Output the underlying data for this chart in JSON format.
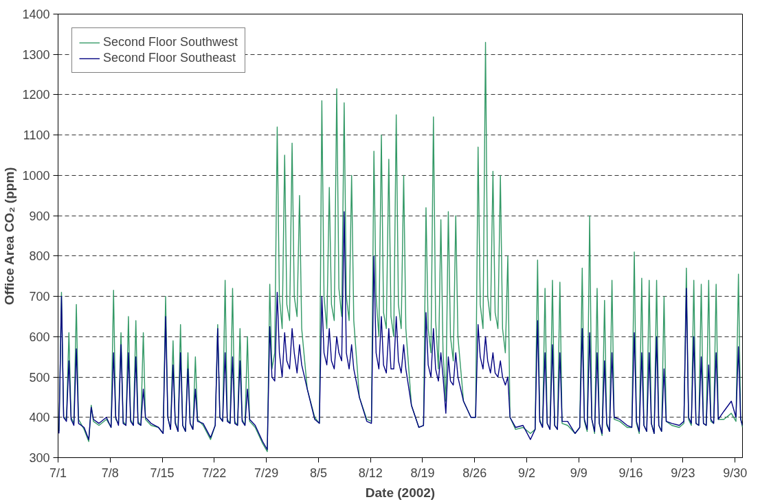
{
  "chart_data": {
    "type": "line",
    "xlabel": "Date (2002)",
    "ylabel": "Office Area CO₂ (ppm)",
    "x": [
      "2002-07-01T03:00",
      "2002-07-01T11:00",
      "2002-07-01T18:00",
      "2002-07-02T03:00",
      "2002-07-02T11:00",
      "2002-07-02T18:00",
      "2002-07-03T03:00",
      "2002-07-03T11:00",
      "2002-07-03T18:00",
      "2002-07-04T12:00",
      "2002-07-05T03:00",
      "2002-07-05T11:00",
      "2002-07-05T18:00",
      "2002-07-06T12:00",
      "2002-07-07T12:00",
      "2002-07-08T03:00",
      "2002-07-08T11:00",
      "2002-07-08T18:00",
      "2002-07-09T03:00",
      "2002-07-09T11:00",
      "2002-07-09T18:00",
      "2002-07-10T03:00",
      "2002-07-10T11:00",
      "2002-07-10T18:00",
      "2002-07-11T03:00",
      "2002-07-11T11:00",
      "2002-07-11T18:00",
      "2002-07-12T03:00",
      "2002-07-12T11:00",
      "2002-07-12T18:00",
      "2002-07-13T12:00",
      "2002-07-14T12:00",
      "2002-07-15T03:00",
      "2002-07-15T11:00",
      "2002-07-15T18:00",
      "2002-07-16T03:00",
      "2002-07-16T11:00",
      "2002-07-16T18:00",
      "2002-07-17T03:00",
      "2002-07-17T11:00",
      "2002-07-17T18:00",
      "2002-07-18T03:00",
      "2002-07-18T11:00",
      "2002-07-18T18:00",
      "2002-07-19T03:00",
      "2002-07-19T11:00",
      "2002-07-19T18:00",
      "2002-07-20T12:00",
      "2002-07-21T12:00",
      "2002-07-22T03:00",
      "2002-07-22T11:00",
      "2002-07-22T18:00",
      "2002-07-23T03:00",
      "2002-07-23T11:00",
      "2002-07-23T18:00",
      "2002-07-24T03:00",
      "2002-07-24T11:00",
      "2002-07-24T18:00",
      "2002-07-25T03:00",
      "2002-07-25T11:00",
      "2002-07-25T18:00",
      "2002-07-26T03:00",
      "2002-07-26T11:00",
      "2002-07-26T18:00",
      "2002-07-27T12:00",
      "2002-07-28T12:00",
      "2002-07-29T03:00",
      "2002-07-29T11:00",
      "2002-07-29T18:00",
      "2002-07-30T03:00",
      "2002-07-30T11:00",
      "2002-07-30T18:00",
      "2002-07-31T03:00",
      "2002-07-31T11:00",
      "2002-07-31T18:00",
      "2002-08-01T03:00",
      "2002-08-01T11:00",
      "2002-08-01T18:00",
      "2002-08-02T03:00",
      "2002-08-02T11:00",
      "2002-08-02T18:00",
      "2002-08-03T12:00",
      "2002-08-04T12:00",
      "2002-08-05T03:00",
      "2002-08-05T11:00",
      "2002-08-05T18:00",
      "2002-08-06T03:00",
      "2002-08-06T11:00",
      "2002-08-06T18:00",
      "2002-08-07T03:00",
      "2002-08-07T11:00",
      "2002-08-07T18:00",
      "2002-08-08T03:00",
      "2002-08-08T11:00",
      "2002-08-08T18:00",
      "2002-08-09T03:00",
      "2002-08-09T11:00",
      "2002-08-09T18:00",
      "2002-08-10T12:00",
      "2002-08-11T12:00",
      "2002-08-12T03:00",
      "2002-08-12T11:00",
      "2002-08-12T18:00",
      "2002-08-13T03:00",
      "2002-08-13T11:00",
      "2002-08-13T18:00",
      "2002-08-14T03:00",
      "2002-08-14T11:00",
      "2002-08-14T18:00",
      "2002-08-15T03:00",
      "2002-08-15T11:00",
      "2002-08-15T18:00",
      "2002-08-16T03:00",
      "2002-08-16T11:00",
      "2002-08-16T18:00",
      "2002-08-17T12:00",
      "2002-08-18T12:00",
      "2002-08-19T03:00",
      "2002-08-19T11:00",
      "2002-08-19T18:00",
      "2002-08-20T03:00",
      "2002-08-20T11:00",
      "2002-08-20T18:00",
      "2002-08-21T03:00",
      "2002-08-21T11:00",
      "2002-08-21T18:00",
      "2002-08-22T03:00",
      "2002-08-22T11:00",
      "2002-08-22T18:00",
      "2002-08-23T03:00",
      "2002-08-23T11:00",
      "2002-08-23T18:00",
      "2002-08-24T12:00",
      "2002-08-25T12:00",
      "2002-08-26T03:00",
      "2002-08-26T11:00",
      "2002-08-26T18:00",
      "2002-08-27T03:00",
      "2002-08-27T11:00",
      "2002-08-27T18:00",
      "2002-08-28T03:00",
      "2002-08-28T11:00",
      "2002-08-28T18:00",
      "2002-08-29T03:00",
      "2002-08-29T11:00",
      "2002-08-29T18:00",
      "2002-08-30T03:00",
      "2002-08-30T11:00",
      "2002-08-30T18:00",
      "2002-08-31T12:00",
      "2002-09-01T12:00",
      "2002-09-02T12:00",
      "2002-09-03T03:00",
      "2002-09-03T11:00",
      "2002-09-03T18:00",
      "2002-09-04T03:00",
      "2002-09-04T11:00",
      "2002-09-04T18:00",
      "2002-09-05T03:00",
      "2002-09-05T11:00",
      "2002-09-05T18:00",
      "2002-09-06T03:00",
      "2002-09-06T11:00",
      "2002-09-06T18:00",
      "2002-09-07T12:00",
      "2002-09-08T12:00",
      "2002-09-09T03:00",
      "2002-09-09T11:00",
      "2002-09-09T18:00",
      "2002-09-10T03:00",
      "2002-09-10T11:00",
      "2002-09-10T18:00",
      "2002-09-11T03:00",
      "2002-09-11T11:00",
      "2002-09-11T18:00",
      "2002-09-12T03:00",
      "2002-09-12T11:00",
      "2002-09-12T18:00",
      "2002-09-13T03:00",
      "2002-09-13T11:00",
      "2002-09-13T18:00",
      "2002-09-14T12:00",
      "2002-09-15T12:00",
      "2002-09-16T03:00",
      "2002-09-16T11:00",
      "2002-09-16T18:00",
      "2002-09-17T03:00",
      "2002-09-17T11:00",
      "2002-09-17T18:00",
      "2002-09-18T03:00",
      "2002-09-18T11:00",
      "2002-09-18T18:00",
      "2002-09-19T03:00",
      "2002-09-19T11:00",
      "2002-09-19T18:00",
      "2002-09-20T03:00",
      "2002-09-20T11:00",
      "2002-09-20T18:00",
      "2002-09-21T12:00",
      "2002-09-22T12:00",
      "2002-09-23T03:00",
      "2002-09-23T11:00",
      "2002-09-23T18:00",
      "2002-09-24T03:00",
      "2002-09-24T11:00",
      "2002-09-24T18:00",
      "2002-09-25T03:00",
      "2002-09-25T11:00",
      "2002-09-25T18:00",
      "2002-09-26T03:00",
      "2002-09-26T11:00",
      "2002-09-26T18:00",
      "2002-09-27T03:00",
      "2002-09-27T11:00",
      "2002-09-27T18:00",
      "2002-09-28T12:00",
      "2002-09-29T12:00",
      "2002-09-30T03:00",
      "2002-09-30T11:00",
      "2002-09-30T18:00",
      "2002-10-01T00:00"
    ],
    "series": [
      {
        "name": "Second Floor Southwest",
        "color": "#339966",
        "values": [
          365,
          710,
          400,
          395,
          610,
          400,
          385,
          680,
          395,
          370,
          340,
          430,
          390,
          380,
          395,
          375,
          715,
          395,
          385,
          610,
          390,
          380,
          650,
          395,
          380,
          640,
          390,
          380,
          610,
          395,
          380,
          375,
          360,
          700,
          400,
          370,
          590,
          390,
          365,
          630,
          380,
          365,
          560,
          385,
          370,
          550,
          395,
          380,
          345,
          380,
          630,
          400,
          390,
          740,
          395,
          385,
          720,
          390,
          380,
          620,
          395,
          380,
          600,
          390,
          375,
          335,
          315,
          730,
          520,
          560,
          1120,
          700,
          620,
          1050,
          680,
          640,
          1080,
          700,
          650,
          950,
          620,
          470,
          400,
          385,
          1185,
          700,
          620,
          970,
          680,
          640,
          1215,
          720,
          650,
          1180,
          700,
          640,
          1000,
          640,
          450,
          395,
          390,
          1060,
          700,
          600,
          1100,
          660,
          620,
          1040,
          650,
          600,
          1150,
          680,
          620,
          1000,
          620,
          430,
          375,
          380,
          920,
          620,
          560,
          1145,
          640,
          520,
          890,
          560,
          440,
          910,
          600,
          540,
          900,
          600,
          440,
          400,
          400,
          1070,
          680,
          620,
          1330,
          700,
          640,
          1010,
          660,
          620,
          1000,
          620,
          560,
          800,
          400,
          370,
          375,
          360,
          370,
          790,
          395,
          375,
          720,
          385,
          370,
          740,
          380,
          370,
          735,
          385,
          380,
          360,
          375,
          770,
          390,
          365,
          900,
          395,
          360,
          720,
          385,
          355,
          690,
          380,
          365,
          740,
          395,
          390,
          375,
          375,
          810,
          385,
          360,
          745,
          380,
          365,
          740,
          385,
          360,
          740,
          380,
          365,
          700,
          390,
          380,
          375,
          385,
          770,
          395,
          380,
          740,
          385,
          380,
          730,
          385,
          380,
          740,
          390,
          385,
          730,
          395,
          395,
          410,
          390,
          755,
          400,
          375
        ]
      },
      {
        "name": "Second Floor Southeast",
        "color": "#000080",
        "values": [
          360,
          700,
          400,
          390,
          540,
          395,
          380,
          570,
          385,
          375,
          345,
          425,
          395,
          385,
          400,
          375,
          560,
          400,
          380,
          580,
          385,
          380,
          560,
          390,
          380,
          550,
          385,
          380,
          470,
          400,
          385,
          375,
          360,
          650,
          400,
          370,
          530,
          385,
          365,
          560,
          380,
          365,
          520,
          385,
          370,
          470,
          390,
          385,
          350,
          380,
          620,
          400,
          390,
          560,
          390,
          385,
          550,
          385,
          380,
          540,
          390,
          380,
          470,
          395,
          380,
          340,
          320,
          625,
          500,
          490,
          710,
          560,
          500,
          610,
          540,
          520,
          620,
          560,
          510,
          580,
          530,
          470,
          395,
          385,
          700,
          560,
          530,
          620,
          540,
          520,
          600,
          560,
          540,
          910,
          560,
          520,
          580,
          520,
          450,
          390,
          385,
          800,
          560,
          520,
          650,
          530,
          510,
          620,
          520,
          520,
          650,
          540,
          510,
          580,
          520,
          430,
          375,
          380,
          660,
          530,
          500,
          620,
          520,
          490,
          560,
          500,
          410,
          550,
          490,
          480,
          560,
          500,
          440,
          400,
          400,
          630,
          550,
          520,
          600,
          540,
          510,
          560,
          510,
          500,
          540,
          500,
          480,
          500,
          400,
          375,
          380,
          345,
          370,
          640,
          390,
          375,
          560,
          385,
          370,
          580,
          380,
          370,
          560,
          390,
          390,
          360,
          375,
          620,
          395,
          370,
          610,
          395,
          365,
          560,
          385,
          360,
          540,
          385,
          365,
          560,
          400,
          395,
          380,
          375,
          610,
          390,
          365,
          560,
          380,
          365,
          560,
          385,
          360,
          600,
          380,
          365,
          520,
          390,
          385,
          380,
          390,
          720,
          400,
          385,
          600,
          385,
          380,
          550,
          385,
          380,
          530,
          395,
          385,
          560,
          395,
          415,
          440,
          400,
          575,
          395,
          380
        ]
      }
    ],
    "xlim": [
      "2002-07-01",
      "2002-10-01"
    ],
    "xticks": [
      {
        "value": "2002-07-01",
        "label": "7/1"
      },
      {
        "value": "2002-07-08",
        "label": "7/8"
      },
      {
        "value": "2002-07-15",
        "label": "7/15"
      },
      {
        "value": "2002-07-22",
        "label": "7/22"
      },
      {
        "value": "2002-07-29",
        "label": "7/29"
      },
      {
        "value": "2002-08-05",
        "label": "8/5"
      },
      {
        "value": "2002-08-12",
        "label": "8/12"
      },
      {
        "value": "2002-08-19",
        "label": "8/19"
      },
      {
        "value": "2002-08-26",
        "label": "8/26"
      },
      {
        "value": "2002-09-02",
        "label": "9/2"
      },
      {
        "value": "2002-09-09",
        "label": "9/9"
      },
      {
        "value": "2002-09-16",
        "label": "9/16"
      },
      {
        "value": "2002-09-23",
        "label": "9/23"
      },
      {
        "value": "2002-09-30",
        "label": "9/30"
      }
    ],
    "ylim": [
      300,
      1400
    ],
    "yticks": [
      300,
      400,
      500,
      600,
      700,
      800,
      900,
      1000,
      1100,
      1200,
      1300,
      1400
    ],
    "grid": "y",
    "legend": "top left",
    "marker": "none",
    "line_style": "solid"
  }
}
